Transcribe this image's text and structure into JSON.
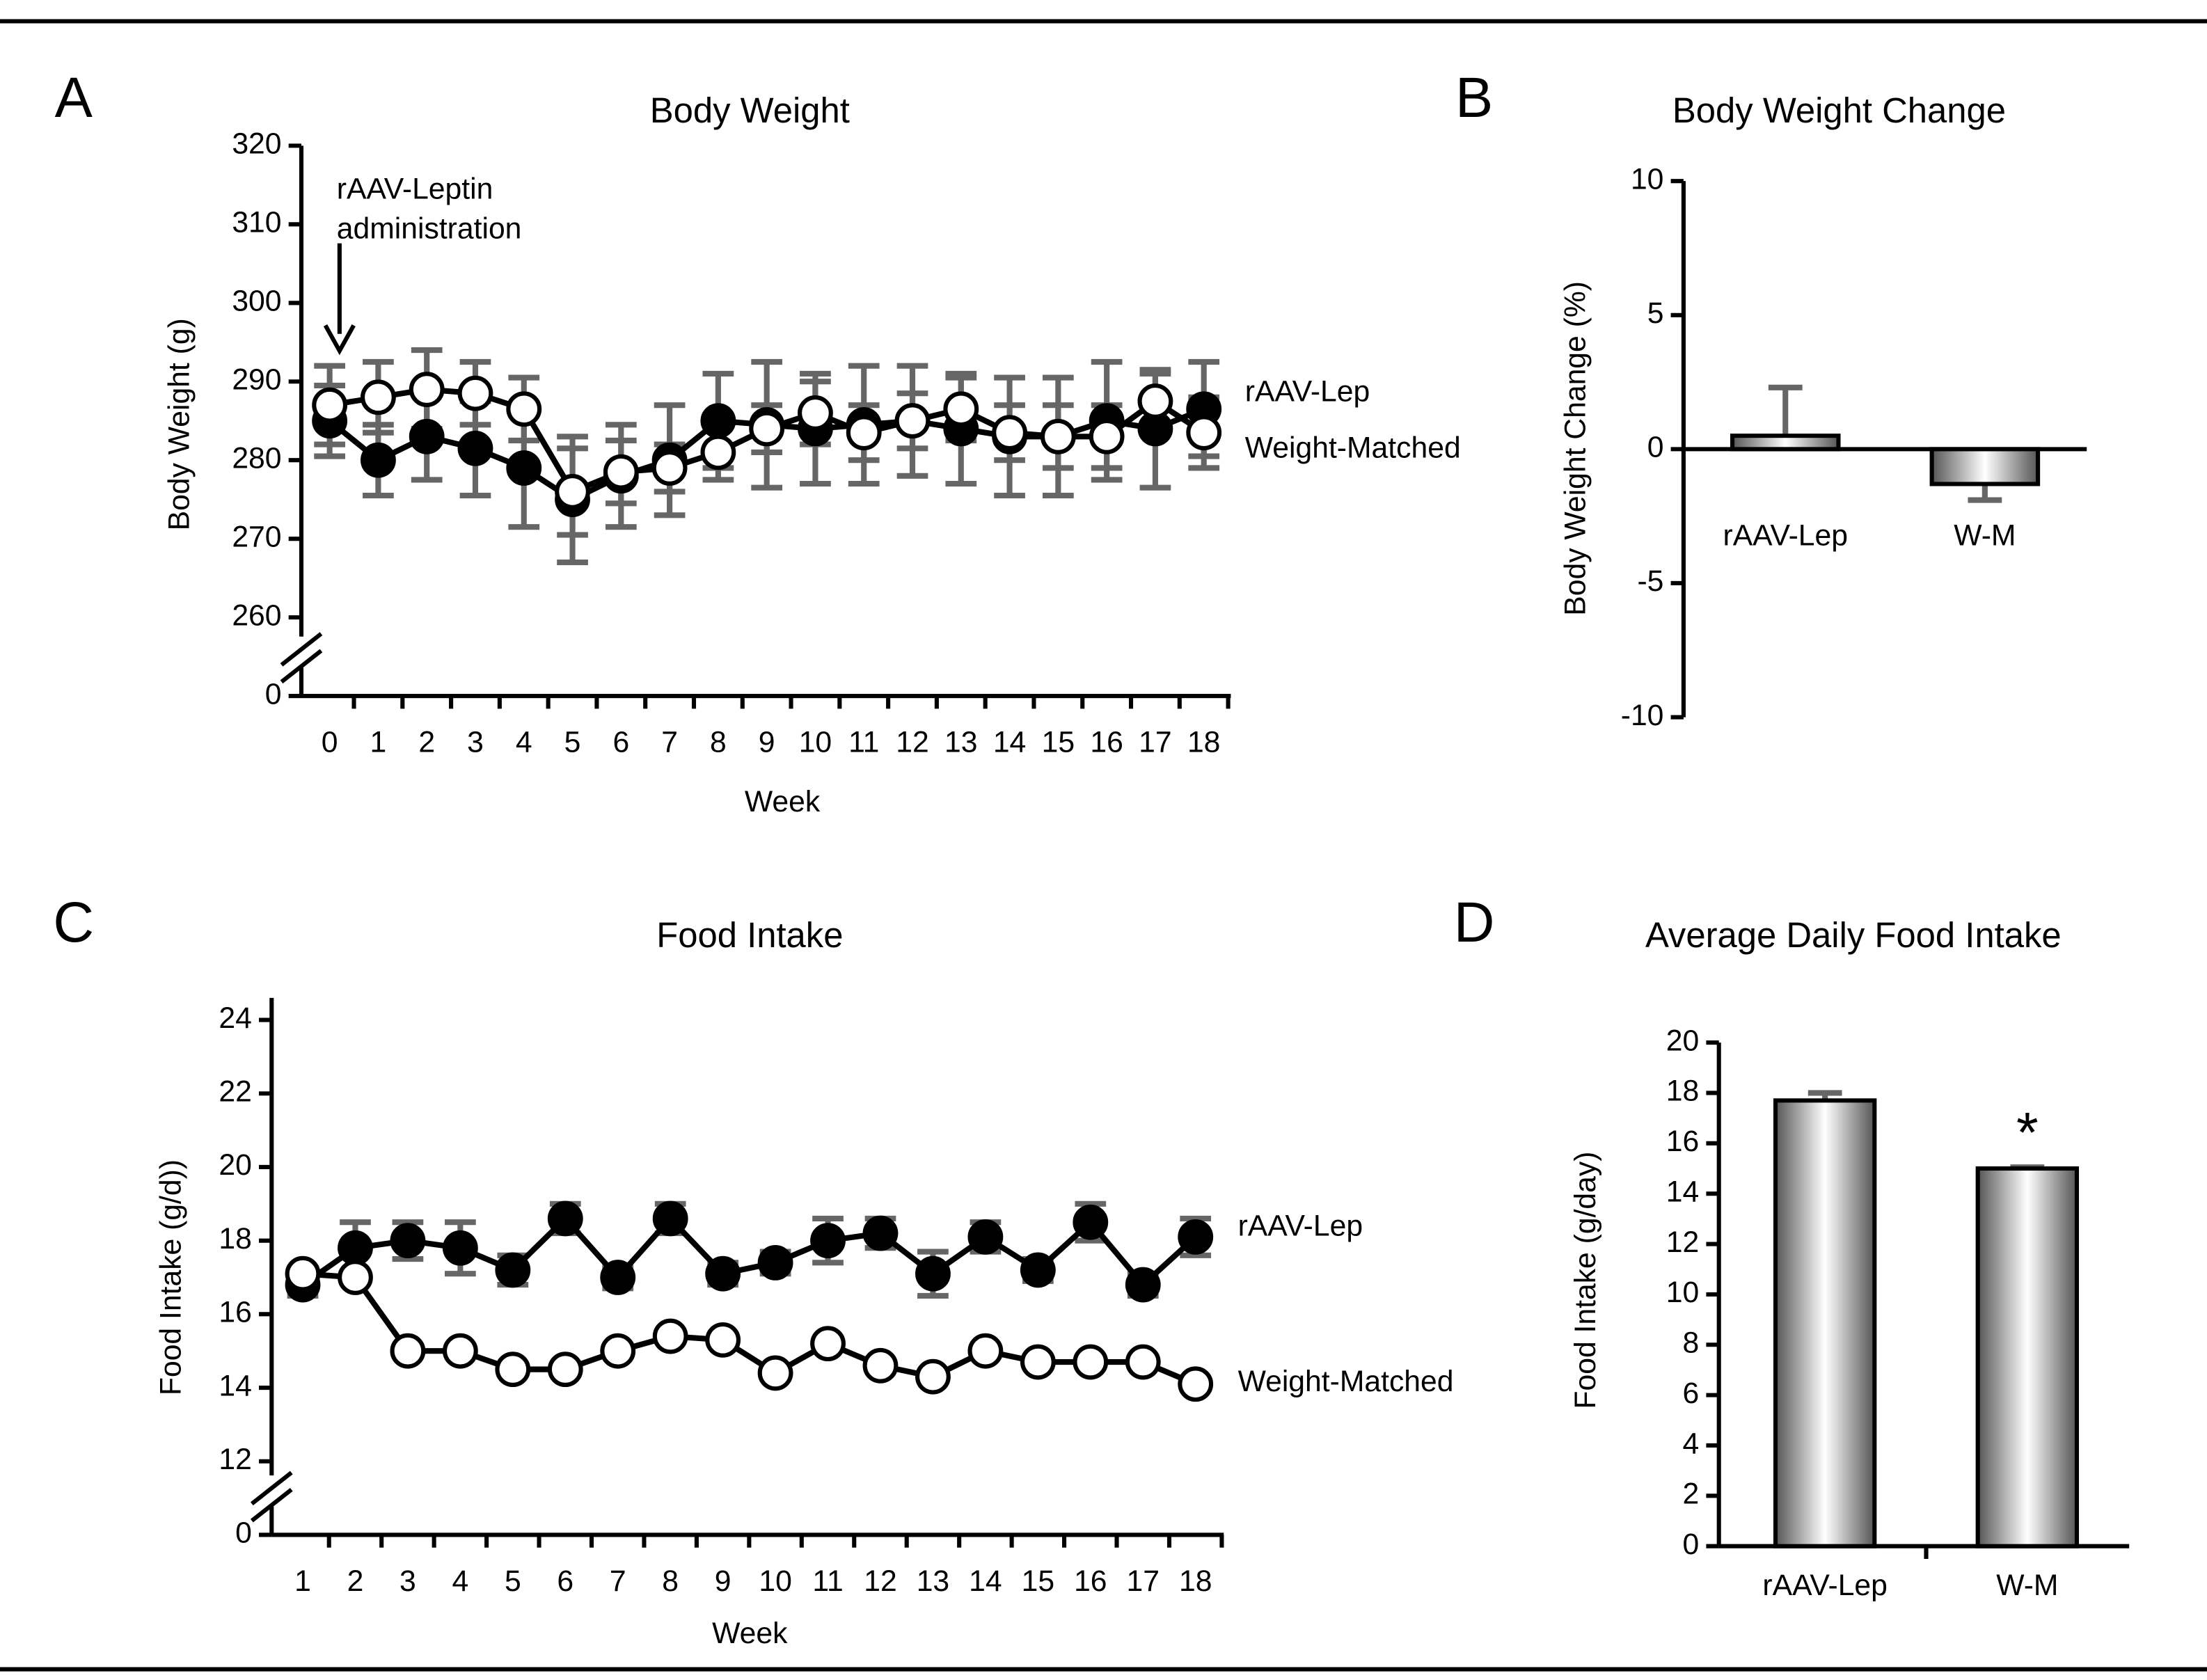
{
  "chart_data": [
    {
      "type": "line",
      "panel": "A",
      "title": "Body Weight",
      "ylabel": "Body Weight (g)",
      "xlabel": "Week",
      "categories": [
        "0",
        "1",
        "2",
        "3",
        "4",
        "5",
        "6",
        "7",
        "8",
        "9",
        "10",
        "11",
        "12",
        "13",
        "14",
        "15",
        "16",
        "17",
        "18"
      ],
      "ylim": [
        250,
        320
      ],
      "yticks": [
        260,
        270,
        280,
        290,
        300,
        310,
        320
      ],
      "y_break_label": "0",
      "annotation": [
        "rAAV-Leptin",
        "administration"
      ],
      "series": [
        {
          "name": "rAAV-Lep",
          "color": "#000000",
          "filled": true,
          "values": [
            285,
            280,
            283,
            281.5,
            279,
            275,
            278,
            280,
            285,
            284.5,
            284,
            284.5,
            285,
            284,
            283,
            283,
            285,
            284,
            286.5
          ],
          "errors": [
            4.5,
            4.5,
            5.5,
            6,
            7.5,
            8,
            6.5,
            7,
            6,
            8,
            7,
            7.5,
            7,
            7,
            7.5,
            7.5,
            7.5,
            7.5,
            6
          ]
        },
        {
          "name": "Weight-Matched",
          "color": "#000000",
          "filled": false,
          "values": [
            287,
            288,
            289,
            288.5,
            286.5,
            276,
            278.5,
            279,
            281,
            284,
            286,
            283.5,
            285,
            286.5,
            283.5,
            283,
            283,
            287.5,
            283.5
          ],
          "errors": [
            5,
            4.5,
            5,
            4,
            4,
            5.5,
            4,
            3,
            3.5,
            3,
            4,
            3.5,
            3.5,
            4,
            3.5,
            4,
            4,
            3.5,
            4.5
          ]
        }
      ]
    },
    {
      "type": "bar",
      "panel": "B",
      "title": "Body Weight Change",
      "ylabel": "Body Weight Change (%)",
      "categories": [
        "rAAV-Lep",
        "W-M"
      ],
      "values": [
        0.5,
        -1.3
      ],
      "errors": [
        1.8,
        0.6
      ],
      "ylim": [
        -10,
        10
      ],
      "yticks": [
        -10,
        -5,
        0,
        5,
        10
      ],
      "categories_inside": true
    },
    {
      "type": "line",
      "panel": "C",
      "title": "Food Intake",
      "ylabel": "Food Intake (g/d))",
      "xlabel": "Week",
      "categories": [
        "1",
        "2",
        "3",
        "4",
        "5",
        "6",
        "7",
        "8",
        "9",
        "10",
        "11",
        "12",
        "13",
        "14",
        "15",
        "16",
        "17",
        "18"
      ],
      "ylim": [
        10,
        24.6
      ],
      "yticks": [
        12,
        14,
        16,
        18,
        20,
        22,
        24
      ],
      "y_break_label": "0",
      "series": [
        {
          "name": "rAAV-Lep",
          "color": "#000000",
          "filled": true,
          "values": [
            16.8,
            17.8,
            18,
            17.8,
            17.2,
            18.6,
            17,
            18.6,
            17.1,
            17.4,
            18,
            18.2,
            17.1,
            18.1,
            17.2,
            18.5,
            16.8,
            18.1
          ],
          "errors": [
            0.3,
            0.7,
            0.5,
            0.7,
            0.4,
            0.4,
            0.3,
            0.4,
            0.3,
            0.3,
            0.6,
            0.4,
            0.6,
            0.4,
            0.3,
            0.5,
            0.3,
            0.5
          ]
        },
        {
          "name": "Weight-Matched",
          "color": "#000000",
          "filled": false,
          "values": [
            17.1,
            17,
            15,
            15,
            14.5,
            14.5,
            15,
            15.4,
            15.3,
            14.4,
            15.2,
            14.6,
            14.3,
            15,
            14.7,
            14.7,
            14.7,
            14.1
          ]
        }
      ]
    },
    {
      "type": "bar",
      "panel": "D",
      "title": "Average Daily Food Intake",
      "ylabel": "Food Intake (g/day)",
      "categories": [
        "rAAV-Lep",
        "W-M"
      ],
      "values": [
        17.7,
        15
      ],
      "errors": [
        0.3,
        0.05
      ],
      "ylim": [
        0,
        20
      ],
      "yticks": [
        0,
        2,
        4,
        6,
        8,
        10,
        12,
        14,
        16,
        18,
        20
      ],
      "annotation": "*"
    }
  ]
}
